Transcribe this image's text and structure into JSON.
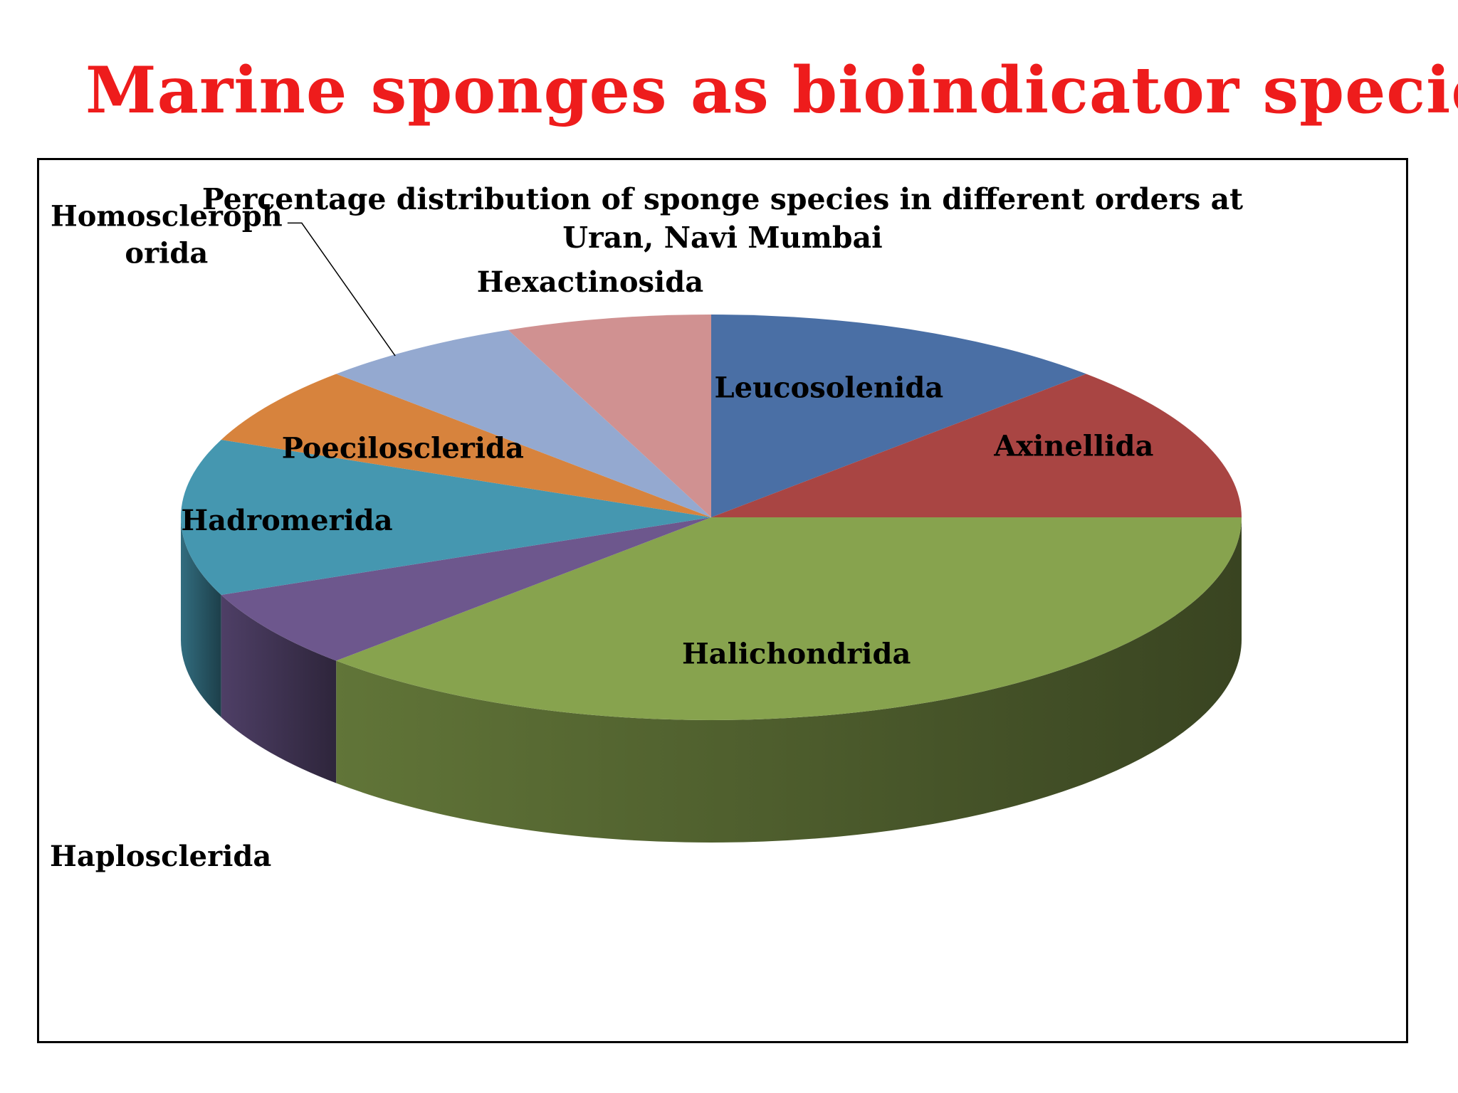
{
  "slide": {
    "title": "Marine sponges as bioindicator species",
    "title_color": "#ee1c1c"
  },
  "chart_data": {
    "type": "pie",
    "style": "3d",
    "title_lines": [
      "Percentage distribution of sponge species in different orders at",
      "Uran, Navi Mumbai"
    ],
    "labels": [
      "Leucosolenida",
      "Axinellida",
      "Halichondrida",
      "Haplosclerida",
      "Hadromerida",
      "Poecilosclerida",
      "Homoscleroph orida",
      "Hexactinosida"
    ],
    "label_lines": [
      [
        "Leucosolenida"
      ],
      [
        "Axinellida"
      ],
      [
        "Halichondrida"
      ],
      [
        "Haplosclerida"
      ],
      [
        "Hadromerida"
      ],
      [
        "Poecilosclerida"
      ],
      [
        "Homoscleroph",
        "orida"
      ],
      [
        "Hexactinosida"
      ]
    ],
    "values": [
      12.5,
      12.5,
      37.5,
      6.25,
      12.5,
      6.25,
      6.25,
      6.25
    ],
    "unit": "%",
    "colors": [
      "#4a6fa5",
      "#a94543",
      "#87a34e",
      "#6d578d",
      "#4597b0",
      "#d7833d",
      "#94a9d0",
      "#d09191"
    ],
    "legend": "none",
    "data_labels": "category names"
  }
}
